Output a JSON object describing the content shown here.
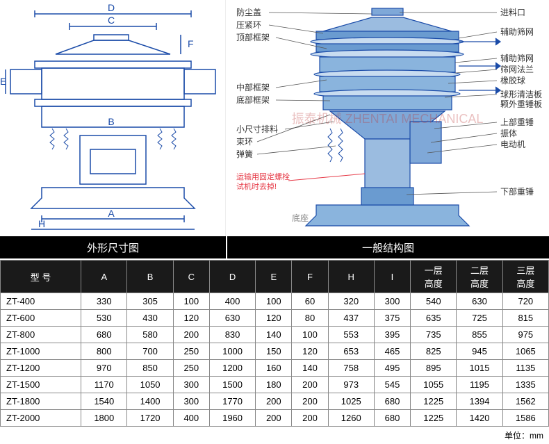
{
  "section_labels": {
    "left": "外形尺寸图",
    "right": "一般结构图"
  },
  "left_diagram": {
    "dim_labels": [
      "A",
      "B",
      "C",
      "D",
      "E",
      "F",
      "H"
    ],
    "line_color": "#1a4ba8",
    "line_width": 1.5
  },
  "right_diagram": {
    "callouts_left": [
      "防尘盖",
      "压紧环",
      "顶部框架",
      "中部框架",
      "底部框架",
      "小尺寸排料",
      "束环",
      "弹簧"
    ],
    "callouts_right": [
      "进料口",
      "辅助筛网",
      "辅助筛网",
      "筛网法兰",
      "橡胶球",
      "球形清洁板",
      "颗外重锤板",
      "上部重锤",
      "振体",
      "电动机",
      "下部重锤"
    ],
    "warning": "运输用固定螺栓\n试机时去掉!",
    "base_label": "底座",
    "line_color": "#1a4ba8",
    "fill_color": "#7fa8d8",
    "warning_color": "#e63946"
  },
  "watermark": "振泰机械 ZHENTAI MECHANICAL",
  "table": {
    "columns": [
      "型 号",
      "A",
      "B",
      "C",
      "D",
      "E",
      "F",
      "H",
      "I",
      "一层\n高度",
      "二层\n高度",
      "三层\n高度"
    ],
    "rows": [
      [
        "ZT-400",
        "330",
        "305",
        "100",
        "400",
        "100",
        "60",
        "320",
        "300",
        "540",
        "630",
        "720"
      ],
      [
        "ZT-600",
        "530",
        "430",
        "120",
        "630",
        "120",
        "80",
        "437",
        "375",
        "635",
        "725",
        "815"
      ],
      [
        "ZT-800",
        "680",
        "580",
        "200",
        "830",
        "140",
        "100",
        "553",
        "395",
        "735",
        "855",
        "975"
      ],
      [
        "ZT-1000",
        "800",
        "700",
        "250",
        "1000",
        "150",
        "120",
        "653",
        "465",
        "825",
        "945",
        "1065"
      ],
      [
        "ZT-1200",
        "970",
        "850",
        "250",
        "1200",
        "160",
        "140",
        "758",
        "495",
        "895",
        "1015",
        "1135"
      ],
      [
        "ZT-1500",
        "1170",
        "1050",
        "300",
        "1500",
        "180",
        "200",
        "973",
        "545",
        "1055",
        "1195",
        "1335"
      ],
      [
        "ZT-1800",
        "1540",
        "1400",
        "300",
        "1770",
        "200",
        "200",
        "1025",
        "680",
        "1225",
        "1394",
        "1562"
      ],
      [
        "ZT-2000",
        "1800",
        "1720",
        "400",
        "1960",
        "200",
        "200",
        "1260",
        "680",
        "1225",
        "1420",
        "1586"
      ]
    ],
    "header_bg": "#1a1a1a",
    "header_color": "#ffffff",
    "border_color": "#888888",
    "font_size": 13
  },
  "unit_label": "单位：mm"
}
